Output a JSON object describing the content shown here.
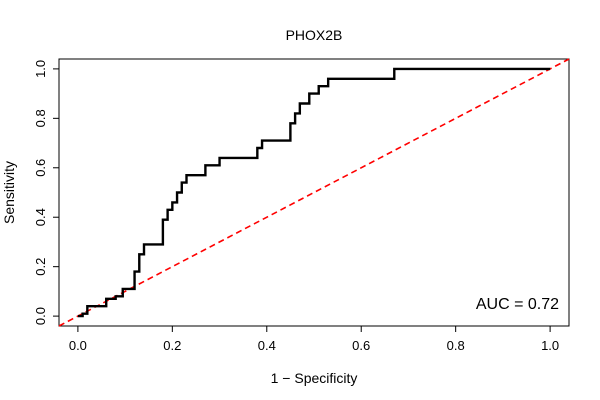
{
  "chart_data": {
    "type": "line",
    "title": "PHOX2B",
    "xlabel": "1 − Specificity",
    "ylabel": "Sensitivity",
    "xlim": [
      -0.04,
      1.04
    ],
    "ylim": [
      -0.04,
      1.04
    ],
    "x_ticks": [
      0.0,
      0.2,
      0.4,
      0.6,
      0.8,
      1.0
    ],
    "x_tick_labels": [
      "0.0",
      "0.2",
      "0.4",
      "0.6",
      "0.8",
      "1.0"
    ],
    "y_ticks": [
      0.0,
      0.2,
      0.4,
      0.6,
      0.8,
      1.0
    ],
    "y_tick_labels": [
      "0.0",
      "0.2",
      "0.4",
      "0.6",
      "0.8",
      "1.0"
    ],
    "grid": false,
    "annotation": "AUC = 0.72",
    "series": [
      {
        "color": "#000000",
        "style": "solid",
        "x": [
          0.0,
          0.01,
          0.01,
          0.02,
          0.02,
          0.06,
          0.06,
          0.08,
          0.08,
          0.095,
          0.095,
          0.12,
          0.12,
          0.13,
          0.13,
          0.14,
          0.14,
          0.18,
          0.18,
          0.19,
          0.19,
          0.2,
          0.2,
          0.21,
          0.21,
          0.22,
          0.22,
          0.23,
          0.23,
          0.24,
          0.24,
          0.27,
          0.27,
          0.3,
          0.3,
          0.38,
          0.38,
          0.39,
          0.39,
          0.45,
          0.45,
          0.46,
          0.46,
          0.47,
          0.47,
          0.49,
          0.49,
          0.51,
          0.51,
          0.53,
          0.53,
          0.67,
          0.67,
          1.0
        ],
        "y": [
          0.0,
          0.0,
          0.01,
          0.01,
          0.04,
          0.04,
          0.07,
          0.07,
          0.08,
          0.08,
          0.11,
          0.11,
          0.18,
          0.18,
          0.25,
          0.25,
          0.29,
          0.29,
          0.39,
          0.39,
          0.43,
          0.43,
          0.46,
          0.46,
          0.5,
          0.5,
          0.54,
          0.54,
          0.57,
          0.57,
          0.57,
          0.57,
          0.61,
          0.61,
          0.64,
          0.64,
          0.68,
          0.68,
          0.71,
          0.71,
          0.78,
          0.78,
          0.82,
          0.82,
          0.86,
          0.86,
          0.9,
          0.9,
          0.93,
          0.93,
          0.96,
          0.96,
          1.0,
          1.0
        ]
      },
      {
        "color": "#ff0000",
        "style": "dashed",
        "x": [
          -0.04,
          1.04
        ],
        "y": [
          -0.04,
          1.04
        ]
      }
    ]
  }
}
